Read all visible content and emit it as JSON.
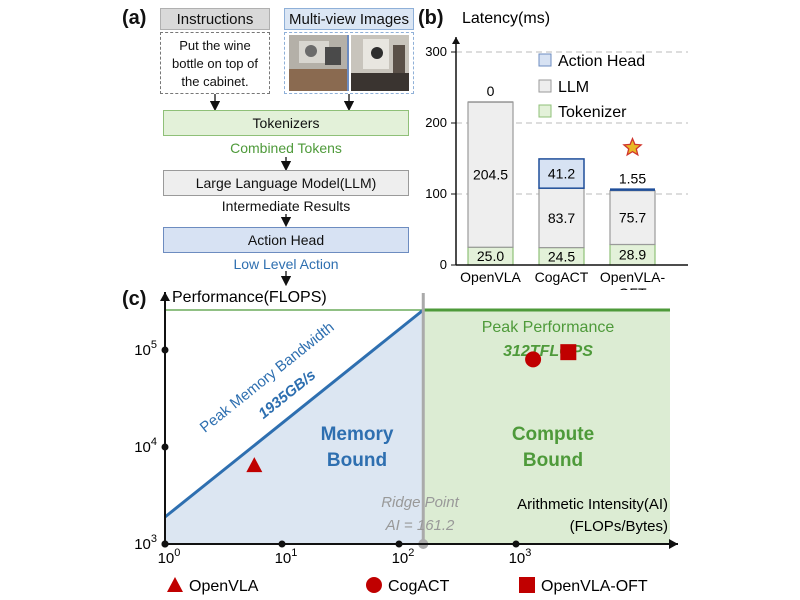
{
  "panel_a": {
    "label": "(a)",
    "instructions_title": "Instructions",
    "instructions_text": [
      "Put the wine",
      "bottle on top of",
      "the cabinet."
    ],
    "images_title": "Multi-view Images",
    "tokenizers": "Tokenizers",
    "combined_tokens": "Combined Tokens",
    "llm": "Large Language Model(LLM)",
    "intermediate": "Intermediate Results",
    "action_head": "Action Head",
    "low_level": "Low Level Action"
  },
  "panel_b": {
    "label": "(b)",
    "legend": [
      "Action Head",
      "LLM",
      "Tokenizer"
    ],
    "chart_data": {
      "type": "bar",
      "stacked": true,
      "title": "",
      "ylabel": "Latency(ms)",
      "ylim": [
        0,
        300
      ],
      "yticks": [
        0,
        100,
        200,
        300
      ],
      "categories": [
        "OpenVLA",
        "CogACT",
        "OpenVLA-OFT"
      ],
      "category_lines": [
        [
          "OpenVLA"
        ],
        [
          "CogACT"
        ],
        [
          "OpenVLA-",
          "OFT"
        ]
      ],
      "series": [
        {
          "name": "Tokenizer",
          "values": [
            25.0,
            24.5,
            28.9
          ],
          "labels": [
            "25.0",
            "24.5",
            "28.9"
          ],
          "color": "#e3f1d9",
          "edge": "#8fc078"
        },
        {
          "name": "LLM",
          "values": [
            204.5,
            83.7,
            75.7
          ],
          "labels": [
            "204.5",
            "83.7",
            "75.7"
          ],
          "color": "#eeeeee",
          "edge": "#9a9a9a"
        },
        {
          "name": "Action Head",
          "values": [
            0,
            41.2,
            1.55
          ],
          "labels": [
            "0",
            "41.2",
            "1.55"
          ],
          "color": "#d7e2f3",
          "edge": "#1f4e9a"
        }
      ],
      "grid": true,
      "legend_position": "top-right",
      "highlight": {
        "category": "OpenVLA-OFT",
        "marker": "star",
        "color": "#e8b826",
        "edge": "#d0342c"
      }
    }
  },
  "panel_c": {
    "label": "(c)",
    "chart_data": {
      "type": "scatter",
      "title": "",
      "ylabel": "Performance(FLOPS)",
      "xlabel": [
        "Arithmetic Intensity(AI)",
        "(FLOPs/Bytes)"
      ],
      "xscale": "log",
      "yscale": "log",
      "xlim": [
        1,
        4000
      ],
      "ylim": [
        1000,
        300000
      ],
      "xticks": [
        {
          "label": "10",
          "exp": "0",
          "value": 1
        },
        {
          "label": "10",
          "exp": "1",
          "value": 10
        },
        {
          "label": "10",
          "exp": "2",
          "value": 100
        },
        {
          "label": "10",
          "exp": "3",
          "value": 1000
        }
      ],
      "yticks": [
        {
          "label": "10",
          "exp": "3",
          "value": 1000
        },
        {
          "label": "10",
          "exp": "4",
          "value": 10000
        },
        {
          "label": "10",
          "exp": "5",
          "value": 100000
        }
      ],
      "roofline": {
        "bandwidth_label": "Peak Memory Bandwidth",
        "bandwidth_value": "1935GB/s",
        "peak_label": "Peak Performance",
        "peak_value": "312TFLOPS",
        "ridge_label": "Ridge Point",
        "ridge_eq": "AI = 161.2",
        "ridge_ai": 161.2,
        "memory_region": [
          "Memory",
          "Bound"
        ],
        "compute_region": [
          "Compute",
          "Bound"
        ],
        "memory_color": "#dce6f2",
        "compute_color": "#dcecd3",
        "bandwidth_line_color": "#2e6fb0",
        "peak_line_color": "#4e9a3a"
      },
      "points": [
        {
          "name": "OpenVLA",
          "marker": "triangle",
          "x": 5.8,
          "y": 6500
        },
        {
          "name": "CogACT",
          "marker": "circle",
          "x": 1400,
          "y": 80000
        },
        {
          "name": "OpenVLA-OFT",
          "marker": "square",
          "x": 2800,
          "y": 95000
        }
      ],
      "point_color": "#c00000",
      "legend_position": "bottom"
    }
  }
}
